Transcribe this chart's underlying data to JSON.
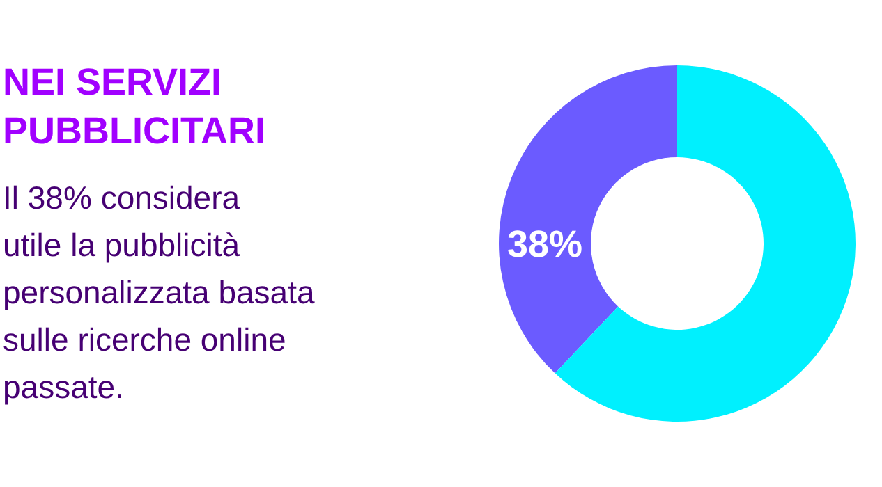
{
  "chart_data": {
    "type": "donut",
    "title": "NEI SERVIZI\nPUBBLICITARI",
    "subtitle": "Il 38% considera\nutile la pubblicità\npersonalizzata basata\nsulle ricerche online\npassate.",
    "categories": [
      null,
      null
    ],
    "values": [
      38,
      62
    ],
    "colors": [
      "#6b5bff",
      "#00f0fe"
    ],
    "value_labels": [
      "38%",
      null
    ]
  }
}
